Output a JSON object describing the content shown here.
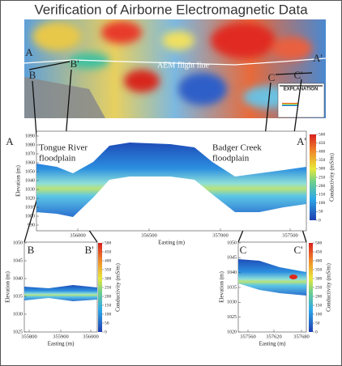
{
  "title": "Verification of Airborne Electromagnetic Data",
  "map": {
    "points": [
      "A",
      "B",
      "B'",
      "A'",
      "C",
      "C'"
    ],
    "flight_line": "AEM flight line",
    "legend_title": "EXPLANATION"
  },
  "sections": [
    {
      "start": "A",
      "end": "A'",
      "annotations": [
        [
          "Tongue River",
          "floodplain"
        ],
        [
          "Badger Creek",
          "floodplain"
        ]
      ],
      "y_label": "Elevation (m)",
      "x_label": "Easting (m)",
      "colorbar_label": "Conductivity (mS/m)",
      "yticks": [
        1090,
        1080,
        1070,
        1060,
        1050,
        1040,
        1030,
        1020,
        1010,
        1000,
        990
      ],
      "xticks": [
        356000,
        356500,
        357000,
        357500
      ],
      "colorbar_ticks": [
        500,
        450,
        400,
        350,
        300,
        250,
        200,
        150,
        100,
        50,
        0
      ]
    },
    {
      "start": "B",
      "end": "B'",
      "annotations": [],
      "y_label": "Elevation (m)",
      "x_label": "Easting (m)",
      "colorbar_label": "Conductivity (mS/m)",
      "yticks": [
        1050,
        1045,
        1040,
        1035,
        1030,
        1025
      ],
      "xticks": [
        355800,
        355900,
        356000
      ],
      "colorbar_ticks": [
        500,
        450,
        400,
        350,
        300,
        250,
        200,
        150,
        100,
        50,
        0
      ]
    },
    {
      "start": "C",
      "end": "C'",
      "annotations": [],
      "y_label": "Elevation (m)",
      "x_label": "Easting (m)",
      "colorbar_label": "Conductivity (mS/m)",
      "yticks": [
        1050,
        1045,
        1040,
        1035,
        1030,
        1025,
        1020
      ],
      "xticks": [
        357560,
        357620,
        357680
      ],
      "colorbar_ticks": [
        500,
        450,
        400,
        350,
        300,
        250,
        200,
        150,
        100,
        50,
        0
      ]
    }
  ]
}
